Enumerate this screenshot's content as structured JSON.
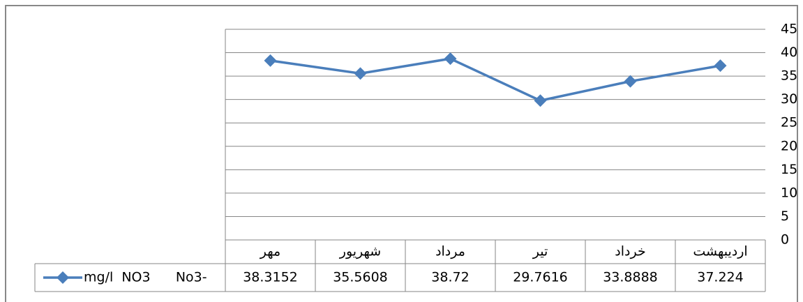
{
  "chart_data": {
    "type": "line",
    "categories": [
      "مهر",
      "شهریور",
      "مرداد",
      "تیر",
      "خرداد",
      "اردیبهشت"
    ],
    "series": [
      {
        "name": "mg/l  NO3      No3-",
        "color": "#4a7ebb",
        "values": [
          38.3152,
          35.5608,
          38.72,
          29.7616,
          33.8888,
          37.224
        ]
      }
    ],
    "ylim": [
      0,
      45
    ],
    "yticks": [
      0,
      5,
      10,
      15,
      20,
      25,
      30,
      35,
      40,
      45
    ],
    "grid": true,
    "y_axis_side": "right",
    "data_table": true
  }
}
